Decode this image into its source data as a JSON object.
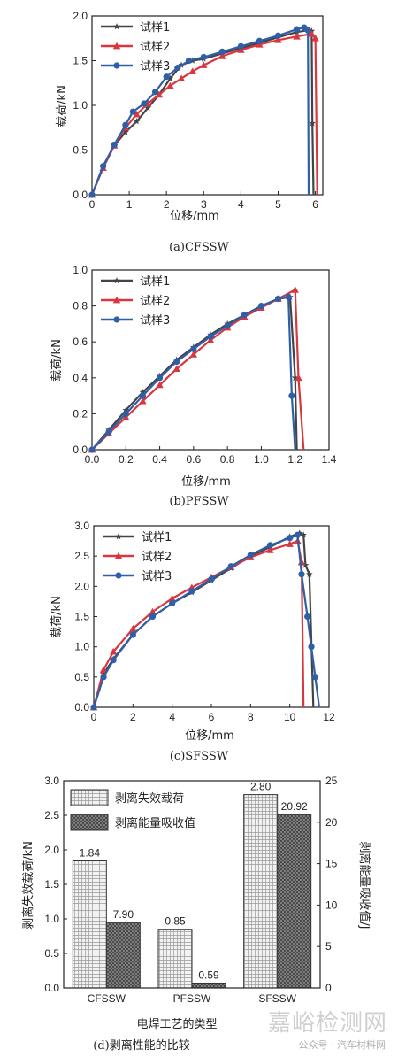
{
  "chart_data": [
    {
      "type": "line",
      "caption": "(a)CFSSW",
      "xlabel": "位移/mm",
      "ylabel": "载荷/kN",
      "xlim": [
        0,
        6.2
      ],
      "ylim": [
        0,
        2.0
      ],
      "xticks": [
        0,
        1,
        2,
        3,
        4,
        5,
        6
      ],
      "yticks": [
        0,
        0.5,
        1.0,
        1.5,
        2.0
      ],
      "legend_position": "top-left",
      "series": [
        {
          "name": "试样1",
          "color": "#444444",
          "marker": "star",
          "x": [
            0,
            0.3,
            0.6,
            0.9,
            1.2,
            1.5,
            1.8,
            2.1,
            2.4,
            2.7,
            3.0,
            3.5,
            4.0,
            4.5,
            5.0,
            5.5,
            5.8,
            5.9,
            5.92,
            5.95
          ],
          "y": [
            0,
            0.32,
            0.55,
            0.7,
            0.82,
            0.97,
            1.12,
            1.3,
            1.45,
            1.5,
            1.52,
            1.58,
            1.64,
            1.7,
            1.76,
            1.82,
            1.84,
            1.83,
            0.8,
            0.0
          ]
        },
        {
          "name": "试样2",
          "color": "#d9363e",
          "marker": "triangle",
          "x": [
            0,
            0.3,
            0.6,
            0.9,
            1.2,
            1.5,
            1.8,
            2.1,
            2.4,
            2.7,
            3.0,
            3.5,
            4.0,
            4.5,
            5.0,
            5.5,
            5.9,
            6.0,
            6.05
          ],
          "y": [
            0,
            0.3,
            0.55,
            0.75,
            0.9,
            1.02,
            1.12,
            1.22,
            1.3,
            1.38,
            1.45,
            1.55,
            1.62,
            1.68,
            1.73,
            1.77,
            1.8,
            1.75,
            0.0
          ]
        },
        {
          "name": "试样3",
          "color": "#2e5fa8",
          "marker": "circle",
          "x": [
            0,
            0.3,
            0.6,
            0.9,
            1.1,
            1.4,
            1.7,
            2.0,
            2.3,
            2.6,
            3.0,
            3.5,
            4.0,
            4.5,
            5.0,
            5.5,
            5.7,
            5.8,
            5.82
          ],
          "y": [
            0,
            0.32,
            0.56,
            0.78,
            0.93,
            1.02,
            1.15,
            1.32,
            1.42,
            1.5,
            1.54,
            1.6,
            1.66,
            1.72,
            1.78,
            1.85,
            1.87,
            1.84,
            0.0
          ]
        }
      ]
    },
    {
      "type": "line",
      "caption": "(b)PFSSW",
      "xlabel": "位移/mm",
      "ylabel": "载荷/kN",
      "xlim": [
        0,
        1.4
      ],
      "ylim": [
        0,
        1.0
      ],
      "xticks": [
        0,
        0.2,
        0.4,
        0.6,
        0.8,
        1.0,
        1.2,
        1.4
      ],
      "yticks": [
        0,
        0.2,
        0.4,
        0.6,
        0.8,
        1.0
      ],
      "legend_position": "top-left",
      "series": [
        {
          "name": "试样1",
          "color": "#444444",
          "marker": "star",
          "x": [
            0,
            0.1,
            0.2,
            0.3,
            0.4,
            0.5,
            0.6,
            0.7,
            0.8,
            0.9,
            1.0,
            1.1,
            1.17,
            1.2,
            1.21
          ],
          "y": [
            0,
            0.11,
            0.22,
            0.32,
            0.41,
            0.5,
            0.57,
            0.64,
            0.7,
            0.75,
            0.8,
            0.84,
            0.85,
            0.4,
            0.0
          ]
        },
        {
          "name": "试样2",
          "color": "#d9363e",
          "marker": "triangle",
          "x": [
            0,
            0.1,
            0.2,
            0.3,
            0.4,
            0.5,
            0.6,
            0.7,
            0.8,
            0.9,
            1.0,
            1.1,
            1.2,
            1.22,
            1.25
          ],
          "y": [
            0,
            0.09,
            0.18,
            0.27,
            0.36,
            0.45,
            0.53,
            0.61,
            0.68,
            0.74,
            0.79,
            0.84,
            0.89,
            0.4,
            0.0
          ]
        },
        {
          "name": "试样3",
          "color": "#2e5fa8",
          "marker": "circle",
          "x": [
            0,
            0.1,
            0.2,
            0.3,
            0.4,
            0.5,
            0.6,
            0.7,
            0.8,
            0.9,
            1.0,
            1.1,
            1.16,
            1.18,
            1.2
          ],
          "y": [
            0,
            0.1,
            0.2,
            0.3,
            0.4,
            0.49,
            0.56,
            0.63,
            0.69,
            0.75,
            0.8,
            0.84,
            0.85,
            0.3,
            0.0
          ]
        }
      ]
    },
    {
      "type": "line",
      "caption": "(c)SFSSW",
      "xlabel": "位移/mm",
      "ylabel": "载荷/kN",
      "xlim": [
        0,
        12
      ],
      "ylim": [
        0,
        3.0
      ],
      "xticks": [
        0,
        2,
        4,
        6,
        8,
        10,
        12
      ],
      "yticks": [
        0,
        0.5,
        1.0,
        1.5,
        2.0,
        2.5,
        3.0
      ],
      "legend_position": "top-left",
      "series": [
        {
          "name": "试样1",
          "color": "#444444",
          "marker": "star",
          "x": [
            0,
            0.5,
            1,
            2,
            3,
            4,
            5,
            6,
            7,
            8,
            9,
            10,
            10.5,
            10.7,
            10.8,
            11.0,
            11.2
          ],
          "y": [
            0,
            0.55,
            0.8,
            1.2,
            1.5,
            1.72,
            1.9,
            2.1,
            2.3,
            2.5,
            2.65,
            2.82,
            2.88,
            2.85,
            2.35,
            2.2,
            0.0
          ]
        },
        {
          "name": "试样2",
          "color": "#d9363e",
          "marker": "triangle",
          "x": [
            0,
            0.5,
            1,
            2,
            3,
            4,
            5,
            6,
            7,
            8,
            9,
            10,
            10.4,
            10.6,
            10.7
          ],
          "y": [
            0,
            0.62,
            0.92,
            1.3,
            1.58,
            1.8,
            1.98,
            2.15,
            2.32,
            2.48,
            2.6,
            2.7,
            2.75,
            2.4,
            0.0
          ]
        },
        {
          "name": "试样3",
          "color": "#2e5fa8",
          "marker": "circle",
          "x": [
            0,
            0.5,
            1,
            2,
            3,
            4,
            5,
            6,
            7,
            8,
            9,
            10,
            10.4,
            10.6,
            10.9,
            11.1,
            11.3,
            11.5
          ],
          "y": [
            0,
            0.5,
            0.78,
            1.2,
            1.5,
            1.72,
            1.92,
            2.12,
            2.33,
            2.52,
            2.68,
            2.8,
            2.85,
            2.2,
            1.5,
            1.0,
            0.5,
            0.0
          ]
        }
      ]
    },
    {
      "type": "bar",
      "caption": "(d)剥离性能的比较",
      "xlabel": "电焊工艺的类型",
      "ylabel": "剥离失效载荷/kN",
      "ylabel_right": "剥离能量吸收值/J",
      "categories": [
        "CFSSW",
        "PFSSW",
        "SFSSW"
      ],
      "ylim": [
        0,
        3.0
      ],
      "ylim_right": [
        0,
        25
      ],
      "yticks": [
        0,
        0.5,
        1.0,
        1.5,
        2.0,
        2.5,
        3.0
      ],
      "yticks_right": [
        0,
        5,
        10,
        15,
        20,
        25
      ],
      "legend_position": "top-left",
      "series": [
        {
          "name": "剥离失效载荷",
          "axis": "left",
          "pattern": "grid",
          "values": [
            1.84,
            0.85,
            2.8
          ],
          "labels": [
            "1.84",
            "0.85",
            "2.80"
          ]
        },
        {
          "name": "剥离能量吸收值",
          "axis": "right",
          "pattern": "crosshatch",
          "values": [
            7.9,
            0.59,
            20.92
          ],
          "labels": [
            "7.90",
            "0.59",
            "20.92"
          ]
        }
      ]
    }
  ],
  "watermark": {
    "main": "嘉峪检测网",
    "sub": "公众号 · 汽车材料网"
  }
}
